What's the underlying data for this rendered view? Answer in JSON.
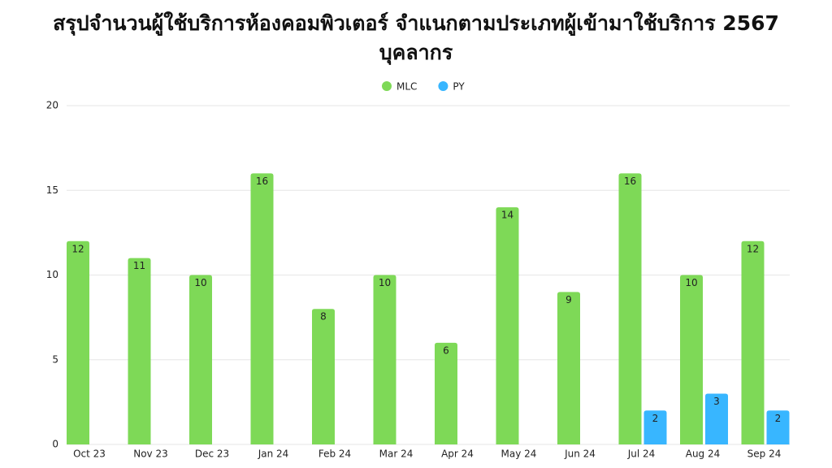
{
  "chart_data": {
    "type": "bar",
    "title": [
      "สรุปจำนวนผู้ใช้บริการห้องคอมพิวเตอร์ จำแนกตามประเภทผู้เข้ามาใช้บริการ 2567",
      "บุคลากร"
    ],
    "categories": [
      "Oct 23",
      "Nov 23",
      "Dec 23",
      "Jan 24",
      "Feb 24",
      "Mar 24",
      "Apr 24",
      "May 24",
      "Jun 24",
      "Jul 24",
      "Aug 24",
      "Sep 24"
    ],
    "series": [
      {
        "name": "MLC",
        "color": "#7ed957",
        "values": [
          12,
          11,
          10,
          16,
          8,
          10,
          6,
          14,
          9,
          16,
          10,
          12
        ]
      },
      {
        "name": "PY",
        "color": "#38b6ff",
        "values": [
          null,
          null,
          null,
          null,
          null,
          null,
          null,
          null,
          null,
          2,
          3,
          2
        ]
      }
    ],
    "ylim": [
      0,
      20
    ],
    "yticks": [
      0,
      5,
      10,
      15,
      20
    ],
    "grid": true,
    "legend": "top"
  }
}
